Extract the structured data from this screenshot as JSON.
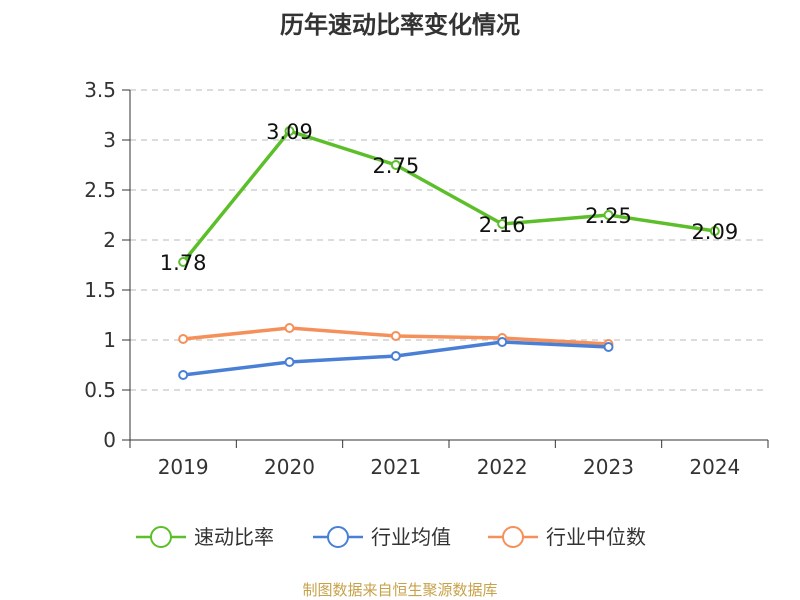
{
  "chart_data": {
    "type": "line",
    "title": "历年速动比率变化情况",
    "categories": [
      "2019",
      "2020",
      "2021",
      "2022",
      "2023",
      "2024"
    ],
    "ylim": [
      0,
      3.5
    ],
    "yticks": [
      "0",
      "0.5",
      "1",
      "1.5",
      "2",
      "2.5",
      "3",
      "3.5"
    ],
    "grid": true,
    "legend_position": "bottom",
    "series": [
      {
        "name": "速动比率",
        "color": "#5cbf2a",
        "values": [
          1.78,
          3.09,
          2.75,
          2.16,
          2.25,
          2.09
        ],
        "labels": [
          "1.78",
          "3.09",
          "2.75",
          "2.16",
          "2.25",
          "2.09"
        ],
        "show_labels": true
      },
      {
        "name": "行业均值",
        "color": "#4a7fd6",
        "values": [
          0.65,
          0.78,
          0.84,
          0.98,
          0.93,
          null
        ],
        "show_labels": false
      },
      {
        "name": "行业中位数",
        "color": "#f5905a",
        "values": [
          1.01,
          1.12,
          1.04,
          1.02,
          0.96,
          null
        ],
        "show_labels": false
      }
    ]
  },
  "footer": "制图数据来自恒生聚源数据库"
}
